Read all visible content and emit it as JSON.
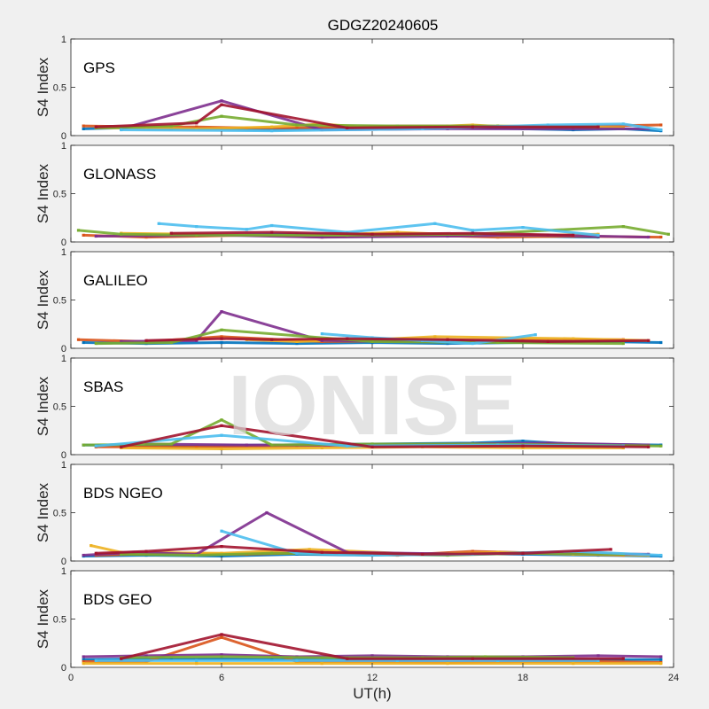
{
  "chart_data": {
    "type": "scatter",
    "title": "GDGZ20240605",
    "xlabel": "UT(h)",
    "ylabel": "S4 Index",
    "xlim": [
      0,
      24
    ],
    "ylim": [
      0,
      1
    ],
    "xticks": [
      "0",
      "6",
      "12",
      "18",
      "24"
    ],
    "yticks": [
      "0",
      "0.5",
      "1"
    ],
    "watermark": "IONISE",
    "series_colors": [
      "#0072bd",
      "#d95319",
      "#edb120",
      "#7e2f8e",
      "#77ac30",
      "#4dbeee",
      "#a2142f"
    ],
    "panels": [
      {
        "label": "GPS",
        "series": [
          {
            "x": [
              0.5,
              2,
              4,
              6,
              8,
              10,
              12,
              14,
              16,
              18,
              20,
              22,
              23.5
            ],
            "y": [
              0.07,
              0.08,
              0.07,
              0.07,
              0.06,
              0.07,
              0.08,
              0.09,
              0.08,
              0.07,
              0.06,
              0.07,
              0.05
            ]
          },
          {
            "x": [
              0.5,
              3,
              5,
              7,
              9,
              11,
              13,
              15,
              17,
              19,
              21,
              23.5
            ],
            "y": [
              0.1,
              0.09,
              0.09,
              0.08,
              0.08,
              0.09,
              0.1,
              0.1,
              0.09,
              0.09,
              0.1,
              0.11
            ]
          },
          {
            "x": [
              1,
              3,
              5,
              8,
              10,
              12,
              14,
              16,
              18,
              20,
              22
            ],
            "y": [
              0.08,
              0.08,
              0.07,
              0.09,
              0.12,
              0.08,
              0.09,
              0.11,
              0.08,
              0.09,
              0.08
            ]
          },
          {
            "x": [
              2,
              6,
              10,
              15,
              20,
              23
            ],
            "y": [
              0.07,
              0.36,
              0.06,
              0.07,
              0.07,
              0.07
            ]
          },
          {
            "x": [
              1,
              4,
              6,
              9,
              13,
              17,
              21
            ],
            "y": [
              0.08,
              0.1,
              0.2,
              0.11,
              0.1,
              0.1,
              0.09
            ]
          },
          {
            "x": [
              2,
              8,
              14,
              19,
              22,
              23.5
            ],
            "y": [
              0.06,
              0.05,
              0.07,
              0.11,
              0.12,
              0.06
            ]
          },
          {
            "x": [
              1,
              5,
              6,
              11,
              16,
              21
            ],
            "y": [
              0.09,
              0.13,
              0.32,
              0.08,
              0.09,
              0.09
            ]
          }
        ]
      },
      {
        "label": "GLONASS",
        "series": [
          {
            "x": [
              3,
              6,
              9,
              12,
              15,
              18,
              21
            ],
            "y": [
              0.06,
              0.07,
              0.08,
              0.07,
              0.08,
              0.06,
              0.05
            ]
          },
          {
            "x": [
              0.5,
              3,
              7,
              10,
              14,
              17,
              20,
              23.5
            ],
            "y": [
              0.07,
              0.05,
              0.07,
              0.05,
              0.07,
              0.05,
              0.06,
              0.05
            ]
          },
          {
            "x": [
              2,
              5,
              9,
              13,
              17,
              21
            ],
            "y": [
              0.09,
              0.08,
              0.06,
              0.1,
              0.06,
              0.08
            ]
          },
          {
            "x": [
              1,
              6,
              10,
              15,
              19,
              23
            ],
            "y": [
              0.06,
              0.07,
              0.05,
              0.06,
              0.07,
              0.05
            ]
          },
          {
            "x": [
              0.3,
              2,
              5,
              11,
              16,
              22,
              23.8
            ],
            "y": [
              0.12,
              0.08,
              0.07,
              0.07,
              0.08,
              0.16,
              0.08
            ]
          },
          {
            "x": [
              3.5,
              5,
              7,
              8,
              11,
              14.5,
              16,
              18,
              21
            ],
            "y": [
              0.19,
              0.16,
              0.13,
              0.17,
              0.1,
              0.19,
              0.12,
              0.15,
              0.07
            ]
          },
          {
            "x": [
              4,
              8,
              12,
              16,
              20
            ],
            "y": [
              0.09,
              0.1,
              0.08,
              0.09,
              0.07
            ]
          }
        ]
      },
      {
        "label": "GALILEO",
        "series": [
          {
            "x": [
              0.5,
              3,
              6,
              9,
              12,
              15,
              18,
              21,
              23.5
            ],
            "y": [
              0.06,
              0.05,
              0.06,
              0.05,
              0.06,
              0.05,
              0.06,
              0.07,
              0.06
            ]
          },
          {
            "x": [
              0.3,
              3,
              6,
              10,
              14,
              18,
              22
            ],
            "y": [
              0.09,
              0.07,
              0.12,
              0.07,
              0.08,
              0.09,
              0.09
            ]
          },
          {
            "x": [
              7,
              9,
              12,
              14.5,
              20,
              23
            ],
            "y": [
              0.09,
              0.07,
              0.09,
              0.12,
              0.1,
              0.08
            ]
          },
          {
            "x": [
              2,
              5,
              6,
              10,
              16,
              21
            ],
            "y": [
              0.07,
              0.08,
              0.38,
              0.08,
              0.07,
              0.07
            ]
          },
          {
            "x": [
              1,
              4,
              6,
              12,
              17,
              22
            ],
            "y": [
              0.05,
              0.06,
              0.19,
              0.07,
              0.06,
              0.05
            ]
          },
          {
            "x": [
              10,
              12,
              14,
              16,
              18.5
            ],
            "y": [
              0.15,
              0.11,
              0.08,
              0.05,
              0.14
            ]
          },
          {
            "x": [
              3,
              6,
              8,
              11,
              15,
              19,
              23
            ],
            "y": [
              0.08,
              0.1,
              0.09,
              0.1,
              0.09,
              0.07,
              0.08
            ]
          }
        ]
      },
      {
        "label": "SBAS",
        "series": [
          {
            "x": [
              0.5,
              4,
              8,
              12,
              16,
              18,
              20,
              23.5
            ],
            "y": [
              0.1,
              0.09,
              0.1,
              0.11,
              0.12,
              0.14,
              0.11,
              0.1
            ]
          },
          {
            "x": [
              1,
              5,
              9,
              13,
              17,
              21
            ],
            "y": [
              0.08,
              0.08,
              0.09,
              0.09,
              0.1,
              0.08
            ]
          },
          {
            "x": [
              2,
              6,
              10,
              14,
              18,
              22
            ],
            "y": [
              0.07,
              0.06,
              0.07,
              0.08,
              0.07,
              0.07
            ]
          },
          {
            "x": [
              3,
              7,
              11,
              15,
              19,
              23
            ],
            "y": [
              0.11,
              0.1,
              0.1,
              0.11,
              0.12,
              0.1
            ]
          },
          {
            "x": [
              0.5,
              4,
              6,
              8,
              12,
              16,
              20,
              23.5
            ],
            "y": [
              0.1,
              0.11,
              0.36,
              0.1,
              0.11,
              0.11,
              0.1,
              0.09
            ]
          },
          {
            "x": [
              1,
              6,
              11,
              17,
              22
            ],
            "y": [
              0.09,
              0.2,
              0.09,
              0.1,
              0.09
            ]
          },
          {
            "x": [
              2,
              6,
              12,
              18,
              23
            ],
            "y": [
              0.08,
              0.3,
              0.08,
              0.09,
              0.08
            ]
          }
        ]
      },
      {
        "label": "BDS NGEO",
        "series": [
          {
            "x": [
              0.5,
              3,
              6,
              9,
              12,
              15,
              18,
              21,
              23.5
            ],
            "y": [
              0.05,
              0.06,
              0.05,
              0.07,
              0.06,
              0.08,
              0.07,
              0.06,
              0.05
            ]
          },
          {
            "x": [
              1,
              4,
              7,
              10,
              13,
              16,
              19,
              22
            ],
            "y": [
              0.06,
              0.08,
              0.07,
              0.09,
              0.06,
              0.1,
              0.08,
              0.06
            ]
          },
          {
            "x": [
              0.8,
              2,
              6,
              9.5,
              14,
              17,
              20,
              23
            ],
            "y": [
              0.16,
              0.09,
              0.08,
              0.12,
              0.07,
              0.09,
              0.07,
              0.06
            ]
          },
          {
            "x": [
              0.5,
              2.5,
              5,
              7.8,
              11,
              16,
              19,
              23
            ],
            "y": [
              0.06,
              0.09,
              0.07,
              0.5,
              0.09,
              0.07,
              0.08,
              0.07
            ]
          },
          {
            "x": [
              2,
              5,
              8,
              12,
              15,
              18,
              22
            ],
            "y": [
              0.07,
              0.06,
              0.08,
              0.07,
              0.06,
              0.08,
              0.07
            ]
          },
          {
            "x": [
              6,
              9,
              12,
              16,
              20,
              23.5
            ],
            "y": [
              0.31,
              0.08,
              0.06,
              0.07,
              0.1,
              0.06
            ]
          },
          {
            "x": [
              1,
              3,
              6,
              10,
              14,
              18,
              21.5
            ],
            "y": [
              0.08,
              0.1,
              0.15,
              0.09,
              0.07,
              0.08,
              0.12
            ]
          }
        ]
      },
      {
        "label": "BDS GEO",
        "series": [
          {
            "x": [
              0.5,
              4,
              8,
              12,
              16,
              20,
              23.5
            ],
            "y": [
              0.08,
              0.09,
              0.08,
              0.08,
              0.09,
              0.08,
              0.08
            ]
          },
          {
            "x": [
              0.5,
              3,
              6,
              9,
              12,
              15,
              18,
              21,
              23.5
            ],
            "y": [
              0.06,
              0.06,
              0.31,
              0.06,
              0.06,
              0.05,
              0.06,
              0.06,
              0.05
            ]
          },
          {
            "x": [
              0.5,
              5,
              10,
              15,
              20,
              23.5
            ],
            "y": [
              0.04,
              0.04,
              0.04,
              0.04,
              0.04,
              0.04
            ]
          },
          {
            "x": [
              0.5,
              3,
              6,
              9,
              12,
              15,
              18,
              21,
              23.5
            ],
            "y": [
              0.11,
              0.12,
              0.13,
              0.11,
              0.12,
              0.11,
              0.11,
              0.12,
              0.11
            ]
          },
          {
            "x": [
              2,
              6,
              10,
              14,
              16.5,
              20
            ],
            "y": [
              0.1,
              0.11,
              0.1,
              0.1,
              0.11,
              0.1
            ]
          },
          {
            "x": [
              1,
              5,
              9,
              13,
              17,
              21
            ],
            "y": [
              0.07,
              0.07,
              0.07,
              0.07,
              0.07,
              0.07
            ]
          },
          {
            "x": [
              2,
              6,
              11,
              16,
              22
            ],
            "y": [
              0.09,
              0.34,
              0.09,
              0.09,
              0.09
            ]
          }
        ]
      }
    ]
  }
}
